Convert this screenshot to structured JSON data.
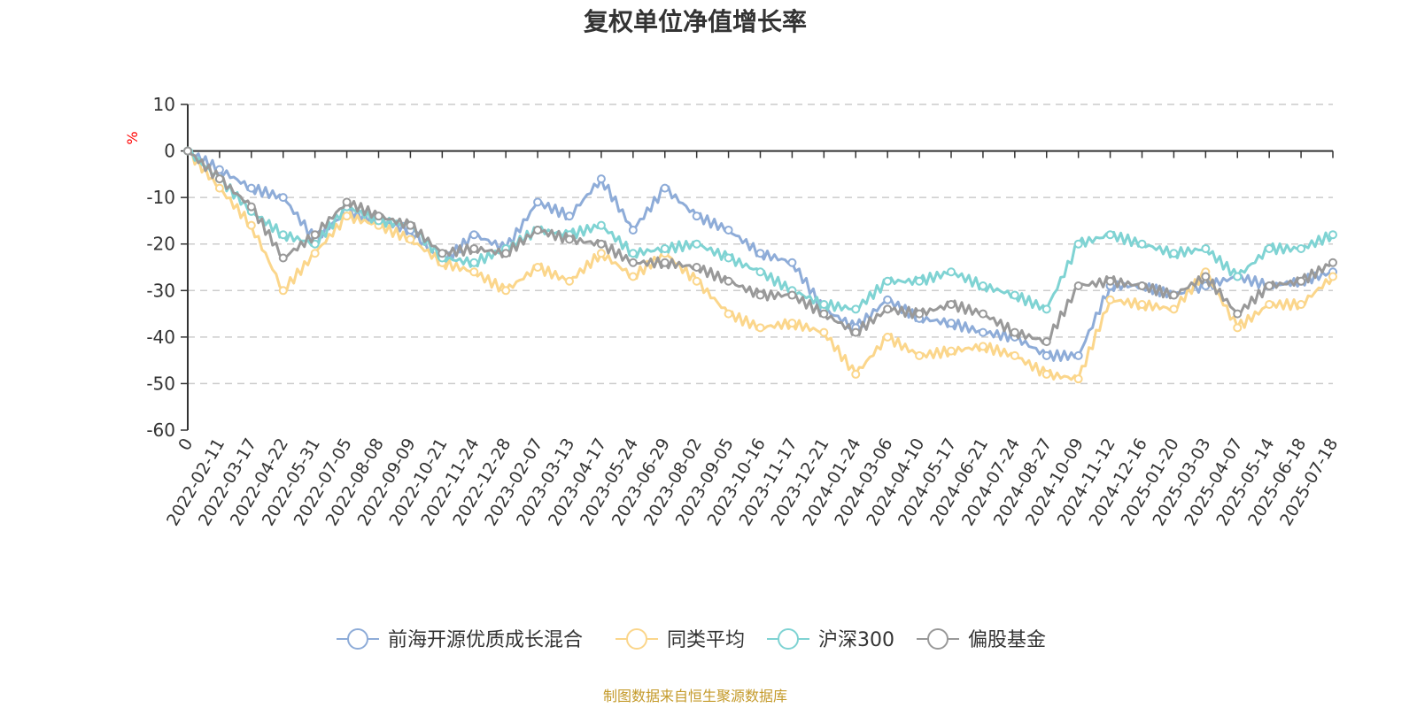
{
  "chart_data": {
    "type": "line",
    "title": "复权单位净值增长率",
    "ylabel": "%",
    "ylim": [
      -60,
      10
    ],
    "yticks": [
      10,
      0,
      -10,
      -20,
      -30,
      -40,
      -50,
      -60
    ],
    "grid": true,
    "legend_position": "bottom",
    "source_note": "制图数据来自恒生聚源数据库",
    "x": [
      "0",
      "2022-02-11",
      "2022-03-17",
      "2022-04-22",
      "2022-05-31",
      "2022-07-05",
      "2022-08-08",
      "2022-09-09",
      "2022-10-21",
      "2022-11-24",
      "2022-12-28",
      "2023-02-07",
      "2023-03-13",
      "2023-04-17",
      "2023-05-24",
      "2023-06-29",
      "2023-08-02",
      "2023-09-05",
      "2023-10-16",
      "2023-11-17",
      "2023-12-21",
      "2024-01-24",
      "2024-03-06",
      "2024-04-10",
      "2024-05-17",
      "2024-06-21",
      "2024-07-24",
      "2024-08-27",
      "2024-10-09",
      "2024-11-12",
      "2024-12-16",
      "2025-01-20",
      "2025-03-03",
      "2025-04-07",
      "2025-05-14",
      "2025-06-18",
      "2025-07-18"
    ],
    "series": [
      {
        "name": "前海开源优质成长混合",
        "color": "#8eacd8",
        "values": [
          0,
          -4,
          -8,
          -10,
          -19,
          -13,
          -15,
          -17,
          -24,
          -18,
          -21,
          -11,
          -14,
          -6,
          -17,
          -8,
          -14,
          -17,
          -22,
          -24,
          -34,
          -38,
          -32,
          -36,
          -37,
          -39,
          -40,
          -44,
          -44,
          -29,
          -29,
          -31,
          -29,
          -27,
          -29,
          -28,
          -26
        ]
      },
      {
        "name": "同类平均",
        "color": "#fbd68b",
        "values": [
          0,
          -8,
          -16,
          -30,
          -22,
          -14,
          -16,
          -19,
          -24,
          -26,
          -30,
          -25,
          -28,
          -22,
          -27,
          -22,
          -28,
          -35,
          -38,
          -37,
          -39,
          -48,
          -40,
          -44,
          -43,
          -42,
          -44,
          -48,
          -49,
          -32,
          -33,
          -34,
          -26,
          -38,
          -33,
          -33,
          -27
        ]
      },
      {
        "name": "沪深300",
        "color": "#7fd3d3",
        "values": [
          0,
          -6,
          -13,
          -18,
          -20,
          -12,
          -15,
          -16,
          -23,
          -24,
          -21,
          -17,
          -18,
          -16,
          -22,
          -21,
          -20,
          -23,
          -26,
          -30,
          -33,
          -34,
          -28,
          -28,
          -26,
          -29,
          -31,
          -34,
          -20,
          -18,
          -20,
          -22,
          -21,
          -27,
          -21,
          -21,
          -18
        ]
      },
      {
        "name": "偏股基金",
        "color": "#999999",
        "values": [
          0,
          -6,
          -12,
          -23,
          -18,
          -11,
          -14,
          -16,
          -22,
          -21,
          -22,
          -17,
          -19,
          -20,
          -24,
          -24,
          -25,
          -28,
          -31,
          -31,
          -35,
          -39,
          -34,
          -35,
          -33,
          -35,
          -39,
          -41,
          -29,
          -28,
          -29,
          -31,
          -27,
          -35,
          -29,
          -28,
          -24
        ]
      }
    ]
  }
}
